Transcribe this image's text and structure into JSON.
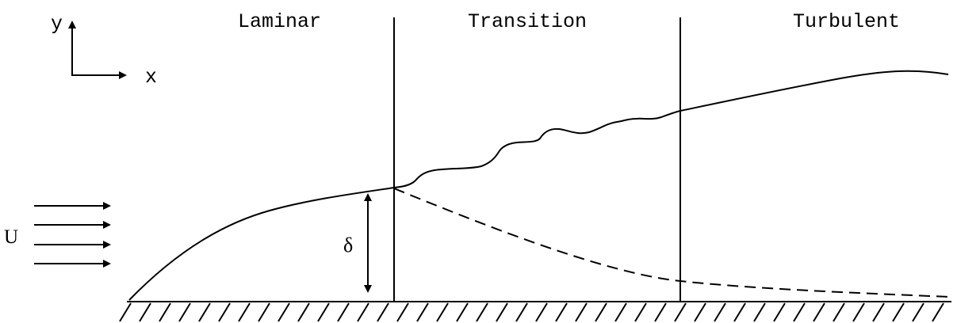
{
  "regions": {
    "laminar": "Laminar",
    "transition": "Transition",
    "turbulent": "Turbulent"
  },
  "axes": {
    "y_label": "y",
    "x_label": "x"
  },
  "freestream": {
    "label": "U",
    "arrow_count": 4
  },
  "boundary_layer": {
    "thickness_label": "δ"
  },
  "colors": {
    "ink": "#000000",
    "background": "#ffffff"
  }
}
